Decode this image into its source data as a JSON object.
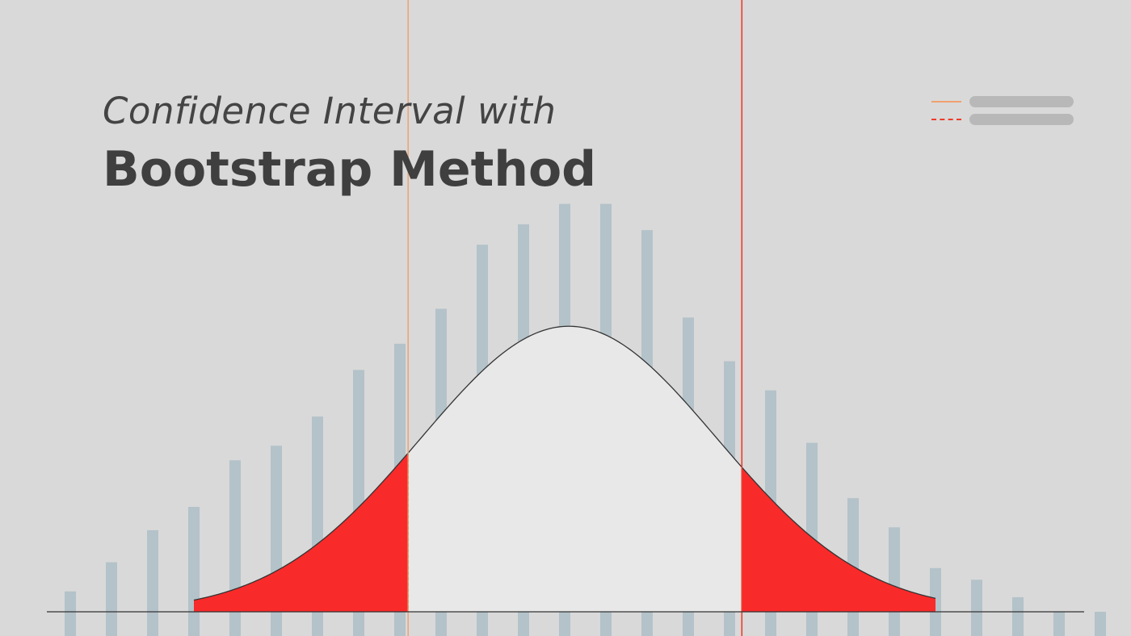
{
  "title": {
    "line1": "Confidence Interval with",
    "line2": "Bootstrap Method"
  },
  "colors": {
    "background": "#d9d9d9",
    "bar": "#b4c2c9",
    "curve_fill": "#e8e8e8",
    "curve_stroke": "#333333",
    "tail_fill": "#f92a2a",
    "lower_bound_line": "#f0a070",
    "upper_bound_line": "#ee3b2b",
    "axis": "#333333"
  },
  "legend": {
    "items": [
      {
        "color": "#f0a070",
        "style": "solid"
      },
      {
        "color": "#ee3b2b",
        "style": "dashed"
      }
    ]
  },
  "chart_data": {
    "type": "bar",
    "x": [
      1,
      2,
      3,
      4,
      5,
      6,
      7,
      8,
      9,
      10,
      11,
      12,
      13,
      14,
      15,
      16,
      17,
      18,
      19,
      20,
      21,
      22,
      23,
      24,
      25,
      26
    ],
    "values": [
      7,
      17,
      28,
      36,
      52,
      57,
      67,
      83,
      92,
      104,
      126,
      133,
      140,
      140,
      131,
      101,
      86,
      76,
      58,
      39,
      29,
      15,
      11,
      5,
      0,
      0
    ],
    "ylim": [
      0,
      145
    ],
    "overlay": {
      "type": "normal-curve",
      "peak_at_x": 13.1,
      "spread_x": 3.6,
      "peak_height": 98,
      "support": [
        4,
        22
      ]
    },
    "interval": {
      "lower_x": 9.2,
      "upper_x": 17.3,
      "tails_shaded": true
    }
  }
}
